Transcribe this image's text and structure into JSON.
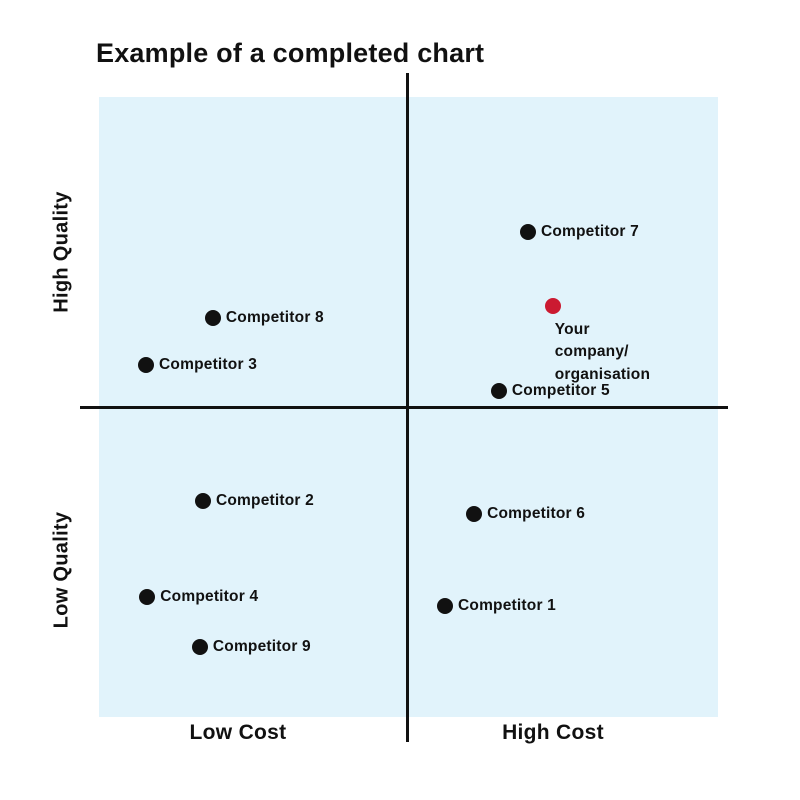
{
  "chart_data": {
    "type": "scatter",
    "title": "Example of a completed chart",
    "axes": {
      "x": {
        "label_low": "Low Cost",
        "label_high": "High Cost"
      },
      "y": {
        "label_low": "Low Quality",
        "label_high": "High Quality"
      }
    },
    "layout": {
      "quadrant_grid": true,
      "legend": "none",
      "value_scale": "qualitative 0-10, origin at bottom-left of plot"
    },
    "colors": {
      "plot_bg": "#E1F3FB",
      "axis": "#111111",
      "dot": "#111111",
      "highlight_dot": "#CB1A31",
      "text": "#111111"
    },
    "points": [
      {
        "label": "Competitor 7",
        "cost": 6.9,
        "quality": 7.8,
        "x_pct": 69.3,
        "y_pct": 21.8,
        "color": "#111111",
        "label_position": "right",
        "quadrant": "high-cost-high-quality"
      },
      {
        "label": "Your company/\norganisation",
        "cost": 7.3,
        "quality": 6.6,
        "x_pct": 73.3,
        "y_pct": 33.7,
        "color": "#CB1A31",
        "label_position": "below",
        "quadrant": "high-cost-high-quality"
      },
      {
        "label": "Competitor 5",
        "cost": 6.5,
        "quality": 5.3,
        "x_pct": 64.6,
        "y_pct": 47.4,
        "color": "#111111",
        "label_position": "right",
        "quadrant": "high-cost-high-quality"
      },
      {
        "label": "Competitor 8",
        "cost": 1.8,
        "quality": 6.4,
        "x_pct": 18.4,
        "y_pct": 35.6,
        "color": "#111111",
        "label_position": "right",
        "quadrant": "low-cost-high-quality"
      },
      {
        "label": "Competitor 3",
        "cost": 0.8,
        "quality": 5.7,
        "x_pct": 7.6,
        "y_pct": 43.2,
        "color": "#111111",
        "label_position": "right",
        "quadrant": "low-cost-high-quality"
      },
      {
        "label": "Competitor 2",
        "cost": 1.7,
        "quality": 3.5,
        "x_pct": 16.8,
        "y_pct": 65.2,
        "color": "#111111",
        "label_position": "right",
        "quadrant": "low-cost-low-quality"
      },
      {
        "label": "Competitor 4",
        "cost": 0.8,
        "quality": 1.9,
        "x_pct": 7.8,
        "y_pct": 80.6,
        "color": "#111111",
        "label_position": "right",
        "quadrant": "low-cost-low-quality"
      },
      {
        "label": "Competitor 9",
        "cost": 1.6,
        "quality": 1.1,
        "x_pct": 16.3,
        "y_pct": 88.7,
        "color": "#111111",
        "label_position": "right",
        "quadrant": "low-cost-low-quality"
      },
      {
        "label": "Competitor 6",
        "cost": 6.1,
        "quality": 3.3,
        "x_pct": 60.6,
        "y_pct": 67.3,
        "color": "#111111",
        "label_position": "right",
        "quadrant": "high-cost-low-quality"
      },
      {
        "label": "Competitor 1",
        "cost": 5.6,
        "quality": 1.8,
        "x_pct": 55.9,
        "y_pct": 82.1,
        "color": "#111111",
        "label_position": "right",
        "quadrant": "high-cost-low-quality"
      }
    ]
  }
}
